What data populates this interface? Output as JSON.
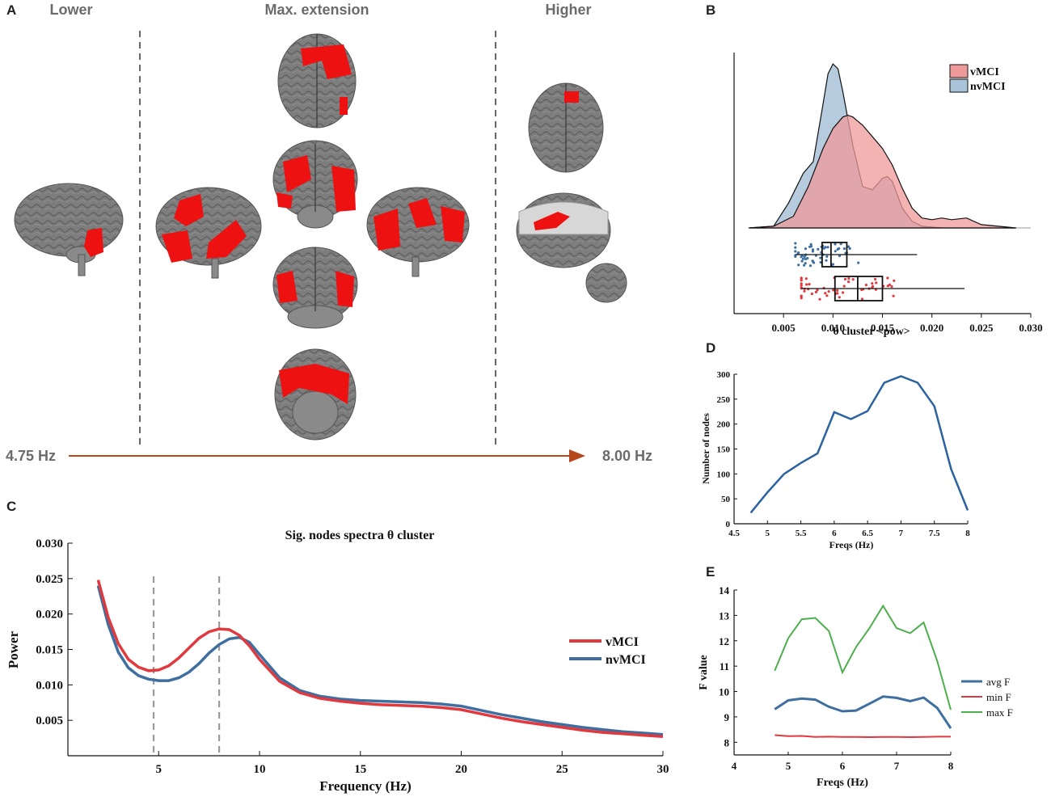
{
  "colors": {
    "vmci": "#e0393e",
    "nvmci": "#3e6fa0",
    "max_f": "#4caf4c",
    "brain": "#7d7d7d",
    "brain_highlight": "#ee1111",
    "arrow": "#b5471b",
    "vmci_fill": "#ef9a9a",
    "nvmci_fill": "#a9c3d8"
  },
  "panel_a": {
    "letter": "A",
    "headers": {
      "lower": "Lower",
      "max": "Max. extension",
      "higher": "Higher"
    },
    "freq_start": "4.75 Hz",
    "freq_end": "8.00 Hz"
  },
  "chart_data": [
    {
      "id": "B",
      "type": "area",
      "letter": "B",
      "xlabel": "θ cluster <pow>",
      "xlim": [
        0.0,
        0.03
      ],
      "xticks": [
        "0.005",
        "0.010",
        "0.015",
        "0.020",
        "0.025",
        "0.030"
      ],
      "legend": [
        "vMCI",
        "nvMCI"
      ],
      "legend_position": "top-right",
      "series": [
        {
          "name": "nvMCI",
          "x": [
            0.0015,
            0.004,
            0.0055,
            0.007,
            0.008,
            0.009,
            0.0095,
            0.01,
            0.0105,
            0.011,
            0.012,
            0.013,
            0.014,
            0.015,
            0.0155,
            0.016,
            0.017,
            0.018,
            0.019,
            0.021,
            0.0285
          ],
          "density": [
            0,
            0.01,
            0.15,
            0.33,
            0.4,
            0.75,
            0.93,
            0.99,
            0.96,
            0.82,
            0.5,
            0.25,
            0.23,
            0.3,
            0.31,
            0.28,
            0.12,
            0.04,
            0.01,
            0,
            0
          ]
        },
        {
          "name": "vMCI",
          "x": [
            0.0015,
            0.004,
            0.006,
            0.0075,
            0.009,
            0.01,
            0.011,
            0.0115,
            0.012,
            0.013,
            0.014,
            0.015,
            0.016,
            0.017,
            0.018,
            0.019,
            0.02,
            0.021,
            0.022,
            0.0235,
            0.025,
            0.0285
          ],
          "density": [
            0,
            0.01,
            0.07,
            0.25,
            0.48,
            0.6,
            0.67,
            0.68,
            0.67,
            0.62,
            0.55,
            0.48,
            0.38,
            0.24,
            0.12,
            0.06,
            0.05,
            0.06,
            0.05,
            0.06,
            0.02,
            0
          ]
        }
      ],
      "boxplots": [
        {
          "name": "nvMCI",
          "whisker_low": 0.0062,
          "q1": 0.0089,
          "median": 0.0098,
          "q3": 0.0114,
          "whisker_high": 0.0185
        },
        {
          "name": "vMCI",
          "whisker_low": 0.0068,
          "q1": 0.0102,
          "median": 0.0125,
          "q3": 0.015,
          "whisker_high": 0.0233
        }
      ]
    },
    {
      "id": "C",
      "type": "line",
      "letter": "C",
      "title": "Sig. nodes spectra θ cluster",
      "xlabel": "Frequency (Hz)",
      "ylabel": "Power",
      "xlim": [
        0.5,
        30
      ],
      "ylim": [
        0.0,
        0.03
      ],
      "xticks": [
        5,
        10,
        15,
        20,
        25,
        30
      ],
      "yticks": [
        "0.005",
        "0.010",
        "0.015",
        "0.020",
        "0.025",
        "0.030"
      ],
      "vlines": [
        4.75,
        8.0
      ],
      "legend": [
        "vMCI",
        "nvMCI"
      ],
      "legend_position": "right",
      "series": [
        {
          "name": "vMCI",
          "x": [
            2,
            2.5,
            3,
            3.5,
            4,
            4.5,
            5,
            5.5,
            6,
            6.5,
            7,
            7.5,
            8,
            8.5,
            9,
            9.5,
            10,
            11,
            12,
            13,
            14,
            15,
            16,
            17,
            18,
            19,
            20,
            21,
            22,
            23,
            24,
            25,
            26,
            27,
            28,
            29,
            30
          ],
          "y": [
            0.0248,
            0.0195,
            0.0158,
            0.0136,
            0.0125,
            0.012,
            0.0121,
            0.0127,
            0.0138,
            0.0152,
            0.0166,
            0.0175,
            0.0179,
            0.0178,
            0.017,
            0.0155,
            0.0136,
            0.0105,
            0.0089,
            0.0081,
            0.0077,
            0.0074,
            0.0072,
            0.0071,
            0.007,
            0.0068,
            0.0065,
            0.0059,
            0.0053,
            0.0048,
            0.0044,
            0.004,
            0.0036,
            0.0033,
            0.0031,
            0.0029,
            0.0027
          ]
        },
        {
          "name": "nvMCI",
          "x": [
            2,
            2.5,
            3,
            3.5,
            4,
            4.5,
            5,
            5.5,
            6,
            6.5,
            7,
            7.5,
            8,
            8.5,
            9,
            9.5,
            10,
            11,
            12,
            13,
            14,
            15,
            16,
            17,
            18,
            19,
            20,
            21,
            22,
            23,
            24,
            25,
            26,
            27,
            28,
            29,
            30
          ],
          "y": [
            0.024,
            0.0185,
            0.0146,
            0.0124,
            0.0113,
            0.0108,
            0.0106,
            0.0106,
            0.011,
            0.0118,
            0.013,
            0.0145,
            0.0157,
            0.0165,
            0.0167,
            0.016,
            0.0143,
            0.011,
            0.0092,
            0.0084,
            0.008,
            0.0078,
            0.0077,
            0.0076,
            0.0075,
            0.0073,
            0.007,
            0.0064,
            0.0058,
            0.0053,
            0.0048,
            0.0044,
            0.004,
            0.0037,
            0.0034,
            0.0032,
            0.003
          ]
        }
      ]
    },
    {
      "id": "D",
      "type": "line",
      "letter": "D",
      "xlabel": "Freqs (Hz)",
      "ylabel": "Number of nodes",
      "xlim": [
        4.5,
        8
      ],
      "ylim": [
        0,
        300
      ],
      "xticks": [
        "4.5",
        "5",
        "5.5",
        "6",
        "6.5",
        "7",
        "7.5",
        "8"
      ],
      "yticks": [
        "0",
        "50",
        "100",
        "150",
        "200",
        "250",
        "300"
      ],
      "series": [
        {
          "name": "Number of nodes",
          "x": [
            4.75,
            5.0,
            5.25,
            5.5,
            5.75,
            6.0,
            6.25,
            6.5,
            6.75,
            7.0,
            7.25,
            7.5,
            7.75,
            8.0
          ],
          "y": [
            22,
            63,
            100,
            122,
            141,
            224,
            210,
            226,
            283,
            296,
            283,
            236,
            110,
            27
          ]
        }
      ]
    },
    {
      "id": "E",
      "type": "line",
      "letter": "E",
      "xlabel": "Freqs (Hz)",
      "ylabel": "F value",
      "xlim": [
        4,
        8
      ],
      "ylim": [
        7.5,
        14
      ],
      "xticks": [
        "4",
        "5",
        "6",
        "7",
        "8"
      ],
      "yticks": [
        "8",
        "9",
        "10",
        "11",
        "12",
        "13",
        "14"
      ],
      "legend": [
        "avg F",
        "min F",
        "max F"
      ],
      "legend_position": "right",
      "series": [
        {
          "name": "avg F",
          "x": [
            4.75,
            5.0,
            5.25,
            5.5,
            5.75,
            6.0,
            6.25,
            6.5,
            6.75,
            7.0,
            7.25,
            7.5,
            7.75,
            8.0
          ],
          "y": [
            9.3,
            9.65,
            9.72,
            9.68,
            9.4,
            9.22,
            9.25,
            9.52,
            9.8,
            9.75,
            9.62,
            9.76,
            9.35,
            8.55
          ]
        },
        {
          "name": "min F",
          "x": [
            4.75,
            5.0,
            5.25,
            5.5,
            5.75,
            6.0,
            6.25,
            6.5,
            6.75,
            7.0,
            7.25,
            7.5,
            7.75,
            8.0
          ],
          "y": [
            8.28,
            8.24,
            8.25,
            8.21,
            8.22,
            8.21,
            8.21,
            8.2,
            8.21,
            8.21,
            8.2,
            8.21,
            8.22,
            8.22
          ]
        },
        {
          "name": "max F",
          "x": [
            4.75,
            5.0,
            5.25,
            5.5,
            5.75,
            6.0,
            6.25,
            6.5,
            6.75,
            7.0,
            7.25,
            7.5,
            7.75,
            8.0
          ],
          "y": [
            10.82,
            12.1,
            12.85,
            12.9,
            12.38,
            10.75,
            11.75,
            12.5,
            13.38,
            12.5,
            12.3,
            12.72,
            11.2,
            9.28
          ]
        }
      ]
    }
  ]
}
